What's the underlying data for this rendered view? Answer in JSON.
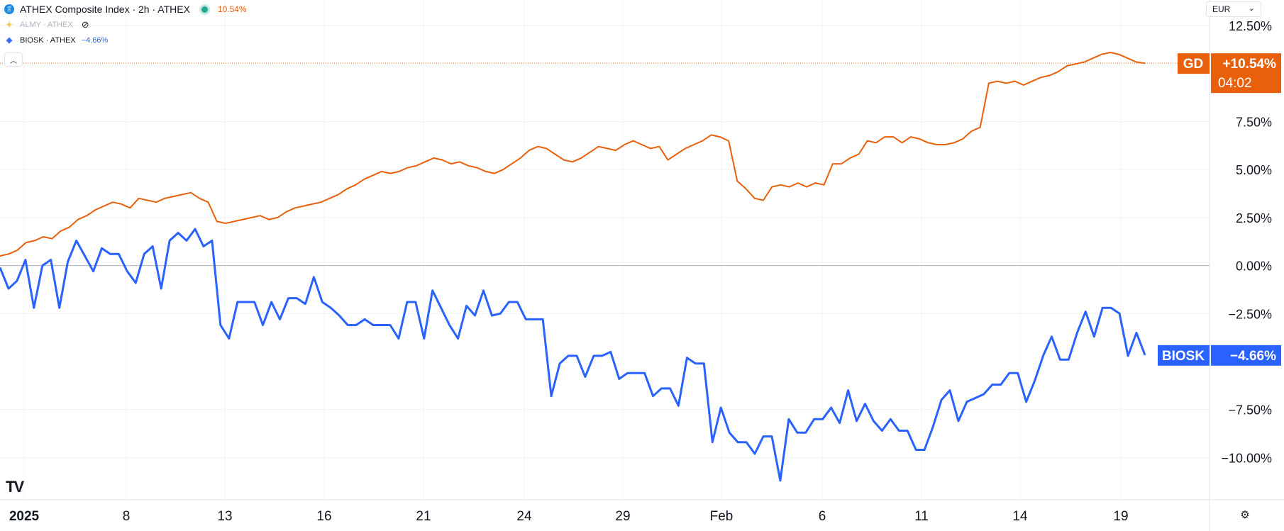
{
  "legend": {
    "main": {
      "symbol_text": "ATHEX Composite Index · 2h · ATHEX",
      "value": "10.54%",
      "value_color": "#e8600c",
      "icon": "athex-logo-icon",
      "status": "market-open-dot"
    },
    "almy": {
      "symbol_text": "ALMY · ATHEX",
      "visibility_icon": "eye-hidden-icon"
    },
    "biosk": {
      "symbol_text": "BIOSK · ATHEX",
      "value": "−4.66%",
      "value_color": "#2962ff"
    }
  },
  "currency": {
    "label": "EUR",
    "icon": "chevron-down-icon"
  },
  "collapse_icon": "chevron-up-icon",
  "brand_logo": "TV",
  "settings_icon": "gear-icon",
  "chart_data": {
    "type": "line",
    "y_axis": {
      "unit": "%",
      "range": [
        -11.5,
        13.5
      ],
      "ticks": [
        12.5,
        7.5,
        5.0,
        2.5,
        0.0,
        -2.5,
        -7.5,
        -10.0
      ],
      "tick_labels": [
        "12.50%",
        "7.50%",
        "5.00%",
        "2.50%",
        "0.00%",
        "−2.50%",
        "−7.50%",
        "−10.00%"
      ]
    },
    "x_axis": {
      "ticks": [
        "2025",
        "8",
        "13",
        "16",
        "21",
        "24",
        "29",
        "Feb",
        "6",
        "11",
        "14",
        "19"
      ],
      "bold_ticks": [
        "2025"
      ]
    },
    "zero_line": true,
    "series": [
      {
        "name": "GD",
        "color": "#e8600c",
        "last_label": "GD",
        "last_value": "+10.54%",
        "countdown": "04:02",
        "y": [
          0.5,
          0.6,
          0.8,
          1.2,
          1.3,
          1.5,
          1.4,
          1.8,
          2.0,
          2.4,
          2.6,
          2.9,
          3.1,
          3.3,
          3.2,
          3.0,
          3.5,
          3.4,
          3.3,
          3.5,
          3.6,
          3.7,
          3.8,
          3.5,
          3.3,
          2.3,
          2.2,
          2.3,
          2.4,
          2.5,
          2.6,
          2.4,
          2.5,
          2.8,
          3.0,
          3.1,
          3.2,
          3.3,
          3.5,
          3.7,
          4.0,
          4.2,
          4.5,
          4.7,
          4.9,
          4.8,
          4.9,
          5.1,
          5.2,
          5.4,
          5.6,
          5.5,
          5.3,
          5.4,
          5.2,
          5.1,
          4.9,
          4.8,
          5.0,
          5.3,
          5.6,
          6.0,
          6.2,
          6.1,
          5.8,
          5.5,
          5.4,
          5.6,
          5.9,
          6.2,
          6.1,
          6.0,
          6.3,
          6.5,
          6.3,
          6.1,
          6.2,
          5.5,
          5.8,
          6.1,
          6.3,
          6.5,
          6.8,
          6.7,
          6.5,
          4.4,
          4.0,
          3.5,
          3.4,
          4.1,
          4.2,
          4.1,
          4.3,
          4.1,
          4.3,
          4.2,
          5.3,
          5.3,
          5.6,
          5.8,
          6.5,
          6.4,
          6.7,
          6.7,
          6.4,
          6.7,
          6.6,
          6.4,
          6.3,
          6.3,
          6.4,
          6.6,
          7.0,
          7.2,
          9.5,
          9.6,
          9.5,
          9.6,
          9.4,
          9.6,
          9.8,
          9.9,
          10.1,
          10.4,
          10.5,
          10.6,
          10.8,
          11.0,
          11.1,
          11.0,
          10.8,
          10.6,
          10.54
        ]
      },
      {
        "name": "BIOSK",
        "color": "#2962ff",
        "last_label": "BIOSK",
        "last_value": "−4.66%",
        "y": [
          -0.1,
          -1.2,
          -0.8,
          0.3,
          -2.2,
          0.0,
          0.3,
          -2.2,
          0.2,
          1.3,
          0.5,
          -0.3,
          0.9,
          0.6,
          0.6,
          -0.3,
          -0.9,
          0.6,
          1.0,
          -1.2,
          1.3,
          1.7,
          1.3,
          1.9,
          1.0,
          1.3,
          -3.1,
          -3.8,
          -1.9,
          -1.9,
          -1.9,
          -3.1,
          -1.9,
          -2.8,
          -1.7,
          -1.7,
          -2.0,
          -0.6,
          -1.9,
          -2.2,
          -2.6,
          -3.1,
          -3.1,
          -2.8,
          -3.1,
          -3.1,
          -3.1,
          -3.8,
          -1.9,
          -1.9,
          -3.8,
          -1.3,
          -2.2,
          -3.1,
          -3.8,
          -2.1,
          -2.6,
          -1.3,
          -2.6,
          -2.5,
          -1.9,
          -1.9,
          -2.8,
          -2.8,
          -2.8,
          -6.8,
          -5.1,
          -4.7,
          -4.7,
          -5.8,
          -4.7,
          -4.7,
          -4.5,
          -5.9,
          -5.6,
          -5.6,
          -5.6,
          -6.8,
          -6.4,
          -6.4,
          -7.3,
          -4.8,
          -5.1,
          -5.1,
          -9.2,
          -7.4,
          -8.7,
          -9.2,
          -9.2,
          -9.8,
          -8.9,
          -8.9,
          -11.2,
          -8.0,
          -8.7,
          -8.7,
          -8.0,
          -8.0,
          -7.4,
          -8.2,
          -6.5,
          -8.1,
          -7.2,
          -8.1,
          -8.6,
          -8.0,
          -8.6,
          -8.6,
          -9.6,
          -9.6,
          -8.4,
          -7.0,
          -6.5,
          -8.1,
          -7.1,
          -6.9,
          -6.7,
          -6.2,
          -6.2,
          -5.6,
          -5.6,
          -7.1,
          -6.0,
          -4.7,
          -3.7,
          -4.9,
          -4.9,
          -3.5,
          -2.4,
          -3.7,
          -2.2,
          -2.2,
          -2.5,
          -4.7,
          -3.5,
          -4.66
        ]
      },
      {
        "name": "ALMY",
        "hidden": true
      }
    ]
  }
}
